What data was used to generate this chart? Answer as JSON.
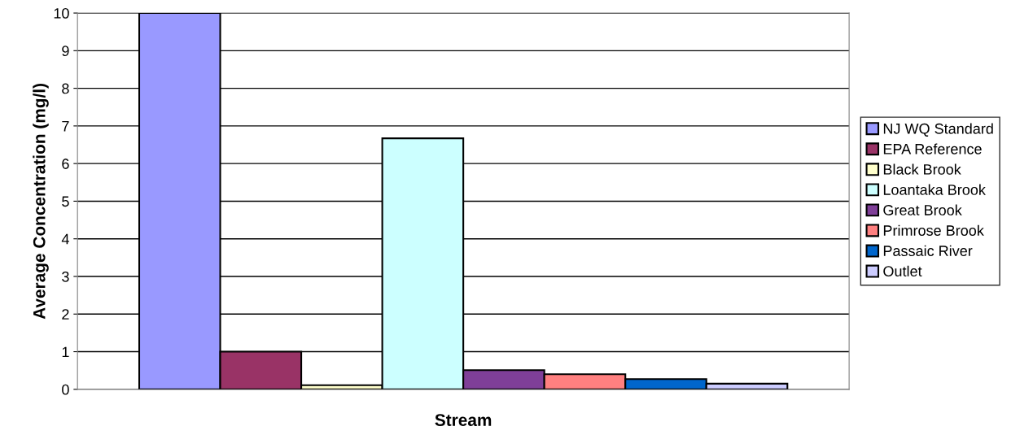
{
  "chart_data": {
    "type": "bar",
    "xlabel": "Stream",
    "ylabel": "Average Concentration (mg/l)",
    "categories": [
      null
    ],
    "series": [
      {
        "name": "NJ WQ Standard",
        "color": "#9999ff",
        "values": [
          10
        ]
      },
      {
        "name": "EPA Reference",
        "color": "#993366",
        "values": [
          1
        ]
      },
      {
        "name": "Black Brook",
        "color": "#ffffcc",
        "values": [
          0.11
        ]
      },
      {
        "name": "Loantaka Brook",
        "color": "#ccffff",
        "values": [
          6.67
        ]
      },
      {
        "name": "Great Brook",
        "color": "#7f3f98",
        "values": [
          0.51
        ]
      },
      {
        "name": "Primrose Brook",
        "color": "#ff8080",
        "values": [
          0.4
        ]
      },
      {
        "name": "Passaic River",
        "color": "#0066cc",
        "values": [
          0.27
        ]
      },
      {
        "name": "Outlet",
        "color": "#ccccff",
        "values": [
          0.15
        ]
      }
    ],
    "ylim": [
      0,
      10
    ],
    "yticks": [
      0,
      1,
      2,
      3,
      4,
      5,
      6,
      7,
      8,
      9,
      10
    ],
    "grid": "y",
    "legend": "right"
  }
}
